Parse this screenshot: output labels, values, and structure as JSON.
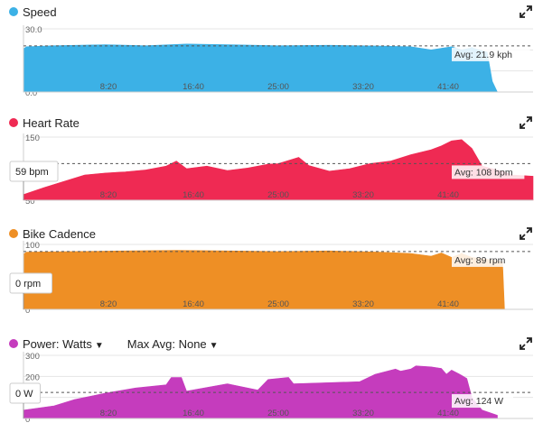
{
  "panels": [
    {
      "id": "speed",
      "title": "Speed",
      "color": "#3cb1e6",
      "chart_data": {
        "type": "area",
        "title": "Speed",
        "ylim": [
          0,
          30
        ],
        "yticks": [
          "0.0",
          "10.0",
          "20.0",
          "30.0"
        ],
        "xticks": [
          "8:20",
          "16:40",
          "25:00",
          "33:20",
          "41:40"
        ],
        "avg_label": "Avg: 21.9 kph",
        "avg_value": 21.9,
        "hover_label": "",
        "x": [
          0,
          0.3,
          3,
          8,
          12,
          16,
          20,
          25,
          30,
          35,
          38,
          40,
          42,
          43,
          44,
          45.5,
          46,
          46.5
        ],
        "values": [
          20.5,
          21.5,
          22,
          22.5,
          22,
          22.8,
          22.5,
          22,
          22.2,
          21.8,
          21.5,
          20,
          21.5,
          20,
          21,
          19,
          5,
          0
        ]
      }
    },
    {
      "id": "heart-rate",
      "title": "Heart Rate",
      "color": "#ef2a53",
      "chart_data": {
        "type": "area",
        "title": "Heart Rate",
        "ylim": [
          50,
          150
        ],
        "yticks": [
          "50",
          "150"
        ],
        "xticks": [
          "8:20",
          "16:40",
          "25:00",
          "33:20",
          "41:40"
        ],
        "avg_label": "Avg: 108 bpm",
        "avg_value": 108,
        "hover_label": "59 bpm",
        "x": [
          0,
          2,
          4,
          6,
          8,
          10,
          12,
          14,
          15,
          16,
          18,
          20,
          22,
          24,
          25,
          27,
          28,
          30,
          32,
          34,
          36,
          38,
          40,
          41,
          42,
          43,
          44,
          45,
          46,
          47,
          48,
          50
        ],
        "values": [
          59,
          70,
          80,
          90,
          93,
          95,
          98,
          104,
          112,
          100,
          104,
          97,
          101,
          107,
          108,
          118,
          105,
          96,
          100,
          108,
          112,
          122,
          130,
          136,
          144,
          146,
          132,
          104,
          100,
          96,
          90,
          88
        ]
      }
    },
    {
      "id": "bike-cadence",
      "title": "Bike Cadence",
      "color": "#ee8f25",
      "chart_data": {
        "type": "area",
        "title": "Bike Cadence",
        "ylim": [
          0,
          100
        ],
        "yticks": [
          "0",
          "100"
        ],
        "xticks": [
          "8:20",
          "16:40",
          "25:00",
          "33:20",
          "41:40"
        ],
        "avg_label": "Avg: 89 rpm",
        "avg_value": 89,
        "hover_label": "0 rpm",
        "x": [
          0,
          0.3,
          5,
          10,
          15,
          20,
          25,
          30,
          35,
          38,
          40,
          41,
          42,
          43,
          44,
          45,
          46,
          47,
          47.2
        ],
        "values": [
          85,
          88,
          89,
          90,
          91,
          90,
          89,
          90,
          88,
          86,
          82,
          87,
          80,
          86,
          80,
          78,
          76,
          73,
          0
        ]
      }
    },
    {
      "id": "power",
      "title": "Power: Watts",
      "max_avg_label": "Max Avg: None",
      "color": "#c53cbd",
      "chart_data": {
        "type": "area",
        "title": "Power: Watts",
        "ylim": [
          0,
          300
        ],
        "yticks": [
          "0",
          "100",
          "200",
          "300"
        ],
        "xticks": [
          "8:20",
          "16:40",
          "25:00",
          "33:20",
          "41:40"
        ],
        "avg_label": "Avg: 124 W",
        "avg_value": 124,
        "hover_label": "0 W",
        "x": [
          0,
          3,
          5,
          8,
          11,
          14,
          14.5,
          15.5,
          16,
          20,
          23,
          24,
          26,
          26.5,
          30,
          33,
          34.5,
          36.5,
          37,
          38,
          38.5,
          40,
          41,
          41.5,
          42,
          43,
          43.5,
          44,
          45,
          46.5
        ],
        "values": [
          40,
          60,
          90,
          120,
          145,
          160,
          195,
          195,
          130,
          165,
          135,
          185,
          195,
          165,
          170,
          175,
          210,
          235,
          225,
          235,
          250,
          245,
          238,
          210,
          230,
          205,
          190,
          100,
          40,
          15
        ]
      }
    }
  ]
}
